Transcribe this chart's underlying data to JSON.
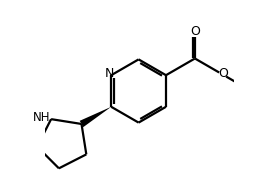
{
  "bg_color": "#ffffff",
  "line_color": "#000000",
  "line_width": 1.6,
  "figsize": [
    2.79,
    1.82
  ],
  "dpi": 100,
  "xlim": [
    0.0,
    1.05
  ],
  "ylim": [
    0.0,
    1.0
  ]
}
